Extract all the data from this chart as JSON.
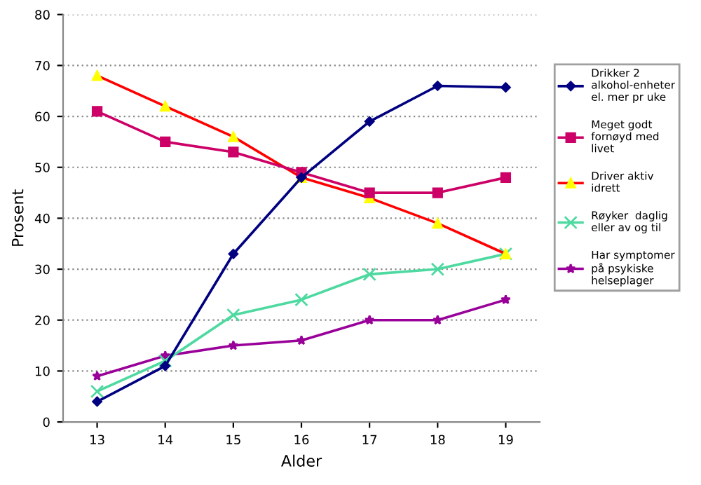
{
  "chart_data": {
    "type": "line",
    "xlabel": "Alder",
    "ylabel": "Prosent",
    "x": [
      13,
      14,
      15,
      16,
      17,
      18,
      19
    ],
    "xlim": [
      12.5,
      19.5
    ],
    "xticks": [
      13,
      14,
      15,
      16,
      17,
      18,
      19
    ],
    "ylim": [
      0,
      80
    ],
    "yticks": [
      0,
      10,
      20,
      30,
      40,
      50,
      60,
      70,
      80
    ],
    "grid": "y",
    "legend": "right",
    "series": [
      {
        "name": "Drikker 2\nalkohol-enheter\nel. mer pr uke",
        "color": "#000080",
        "marker": "diamond",
        "values": [
          4,
          11,
          33,
          48,
          59,
          66,
          65.7
        ]
      },
      {
        "name": "Meget godt\nfornøyd med\nlivet",
        "color": "#cc0066",
        "marker": "square",
        "values": [
          61,
          55,
          53,
          49,
          45,
          45,
          48
        ]
      },
      {
        "name": "Driver aktiv\nidrett",
        "color": "#ff0000",
        "marker": "triangle",
        "values": [
          68,
          62,
          56,
          48,
          44,
          39,
          33
        ]
      },
      {
        "name": "Røyker  daglig\neller av og til",
        "color": "#4dd9a0",
        "marker": "cross",
        "values": [
          6,
          12,
          21,
          24,
          29,
          30,
          33
        ]
      },
      {
        "name": "Har symptomer\npå psykiske\nhelseplager",
        "color": "#990099",
        "marker": "star",
        "values": [
          9,
          13,
          15,
          16,
          20,
          20,
          24
        ]
      }
    ]
  }
}
